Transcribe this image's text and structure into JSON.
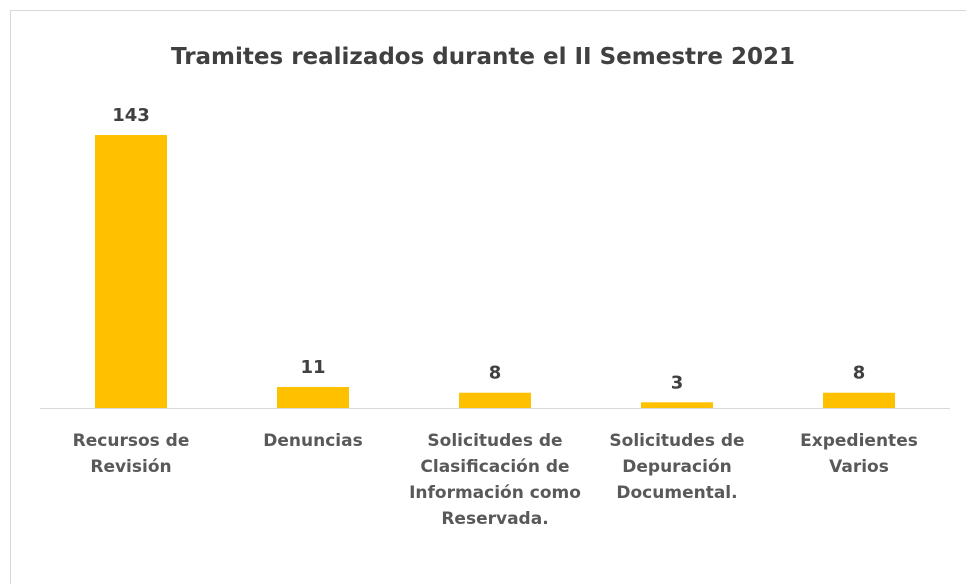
{
  "chart_data": {
    "type": "bar",
    "title": "Tramites realizados durante el II Semestre 2021",
    "categories": [
      "Recursos de Revisión",
      "Denuncias",
      "Solicitudes de Clasificación de Información como Reservada.",
      "Solicitudes de Depuración Documental.",
      "Expedientes Varios"
    ],
    "values": [
      143,
      11,
      8,
      3,
      8
    ],
    "color": "#ffc000"
  }
}
